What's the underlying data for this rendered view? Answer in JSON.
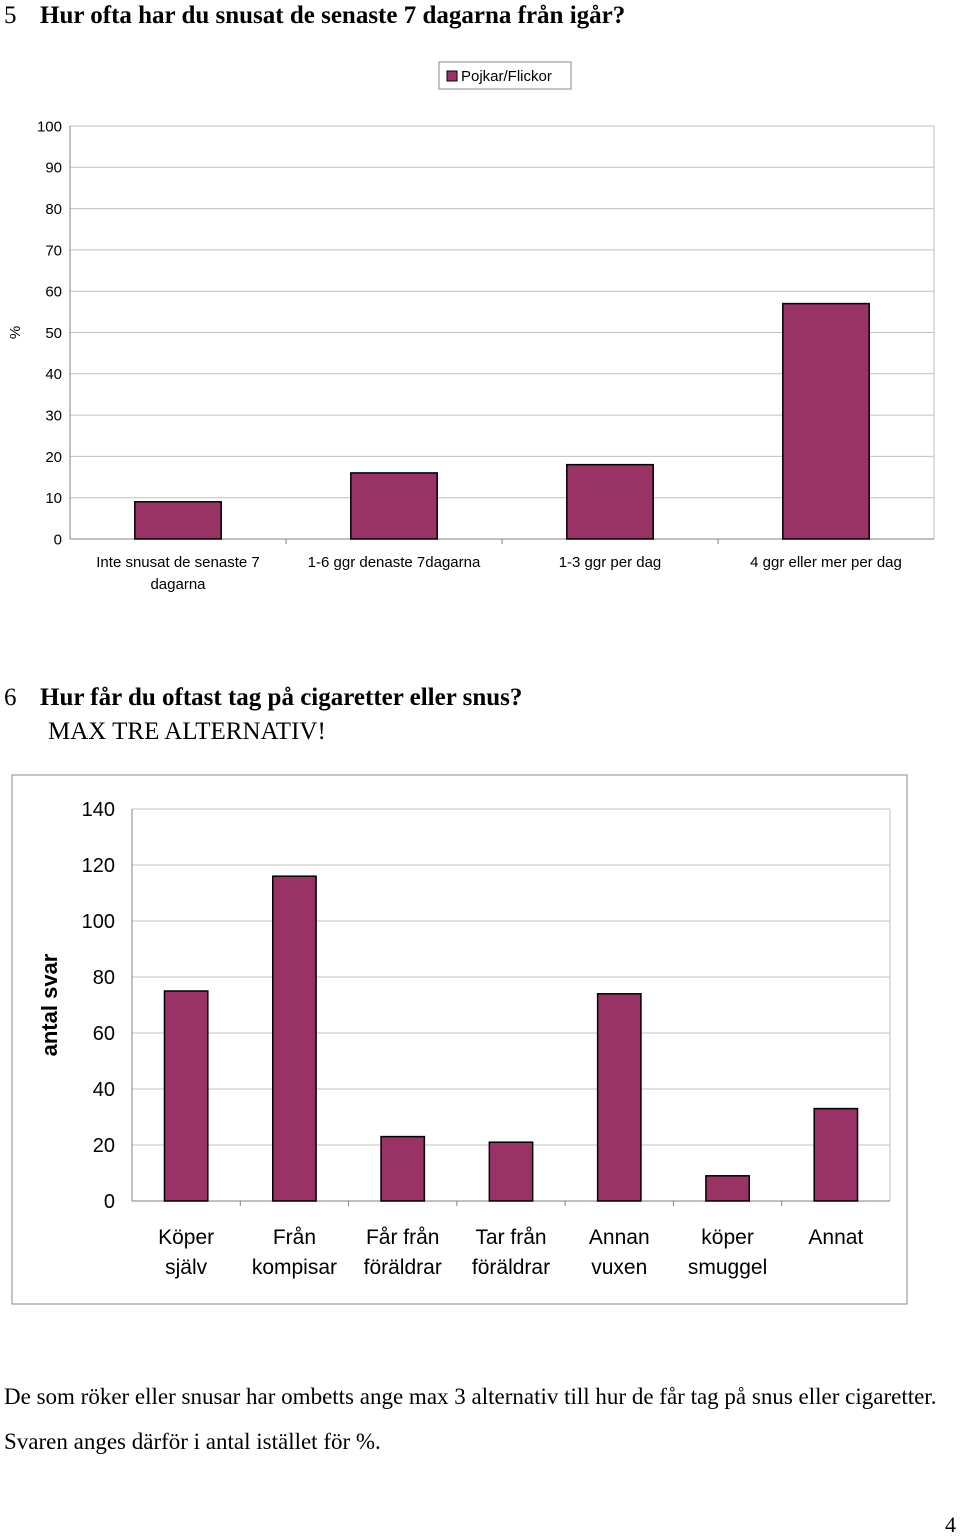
{
  "questions": {
    "q5": {
      "number": "5",
      "text": "Hur ofta har du snusat de senaste 7 dagarna från igår?"
    },
    "q6": {
      "number": "6",
      "text": "Hur får du oftast tag på cigaretter eller snus?",
      "subtext": "MAX TRE ALTERNATIV!"
    }
  },
  "colors": {
    "bar": "#993366",
    "grid": "#c0c0c0",
    "axis": "#808080"
  },
  "chart_data": [
    {
      "type": "bar",
      "title": "",
      "xlabel": "",
      "ylabel": "%",
      "ylim": [
        0,
        100
      ],
      "yticks": [
        0,
        10,
        20,
        30,
        40,
        50,
        60,
        70,
        80,
        90,
        100
      ],
      "grid": true,
      "legend": "top-center",
      "categories": [
        [
          "Inte snusat de senaste 7",
          "dagarna"
        ],
        [
          "1-6 ggr denaste 7dagarna"
        ],
        [
          "1-3 ggr per dag"
        ],
        [
          "4 ggr eller mer per dag"
        ]
      ],
      "series": [
        {
          "name": "Pojkar/Flickor",
          "values": [
            9,
            16,
            18,
            57
          ]
        }
      ]
    },
    {
      "type": "bar",
      "title": "",
      "xlabel": "",
      "ylabel": "antal svar",
      "ylim": [
        0,
        140
      ],
      "yticks": [
        0,
        20,
        40,
        60,
        80,
        100,
        120,
        140
      ],
      "grid": true,
      "legend": "none",
      "categories": [
        [
          "Köper",
          "själv"
        ],
        [
          "Från",
          "kompisar"
        ],
        [
          "Får från",
          "föräldrar"
        ],
        [
          "Tar från",
          "föräldrar"
        ],
        [
          "Annan",
          "vuxen"
        ],
        [
          "köper",
          "smuggel"
        ],
        [
          "Annat"
        ]
      ],
      "series": [
        {
          "values": [
            75,
            116,
            23,
            21,
            74,
            9,
            33
          ]
        }
      ]
    }
  ],
  "note": "De som röker eller snusar har ombetts ange max 3 alternativ till hur de får tag på snus eller cigaretter. Svaren anges därför i antal istället för %.",
  "page_number": "4"
}
